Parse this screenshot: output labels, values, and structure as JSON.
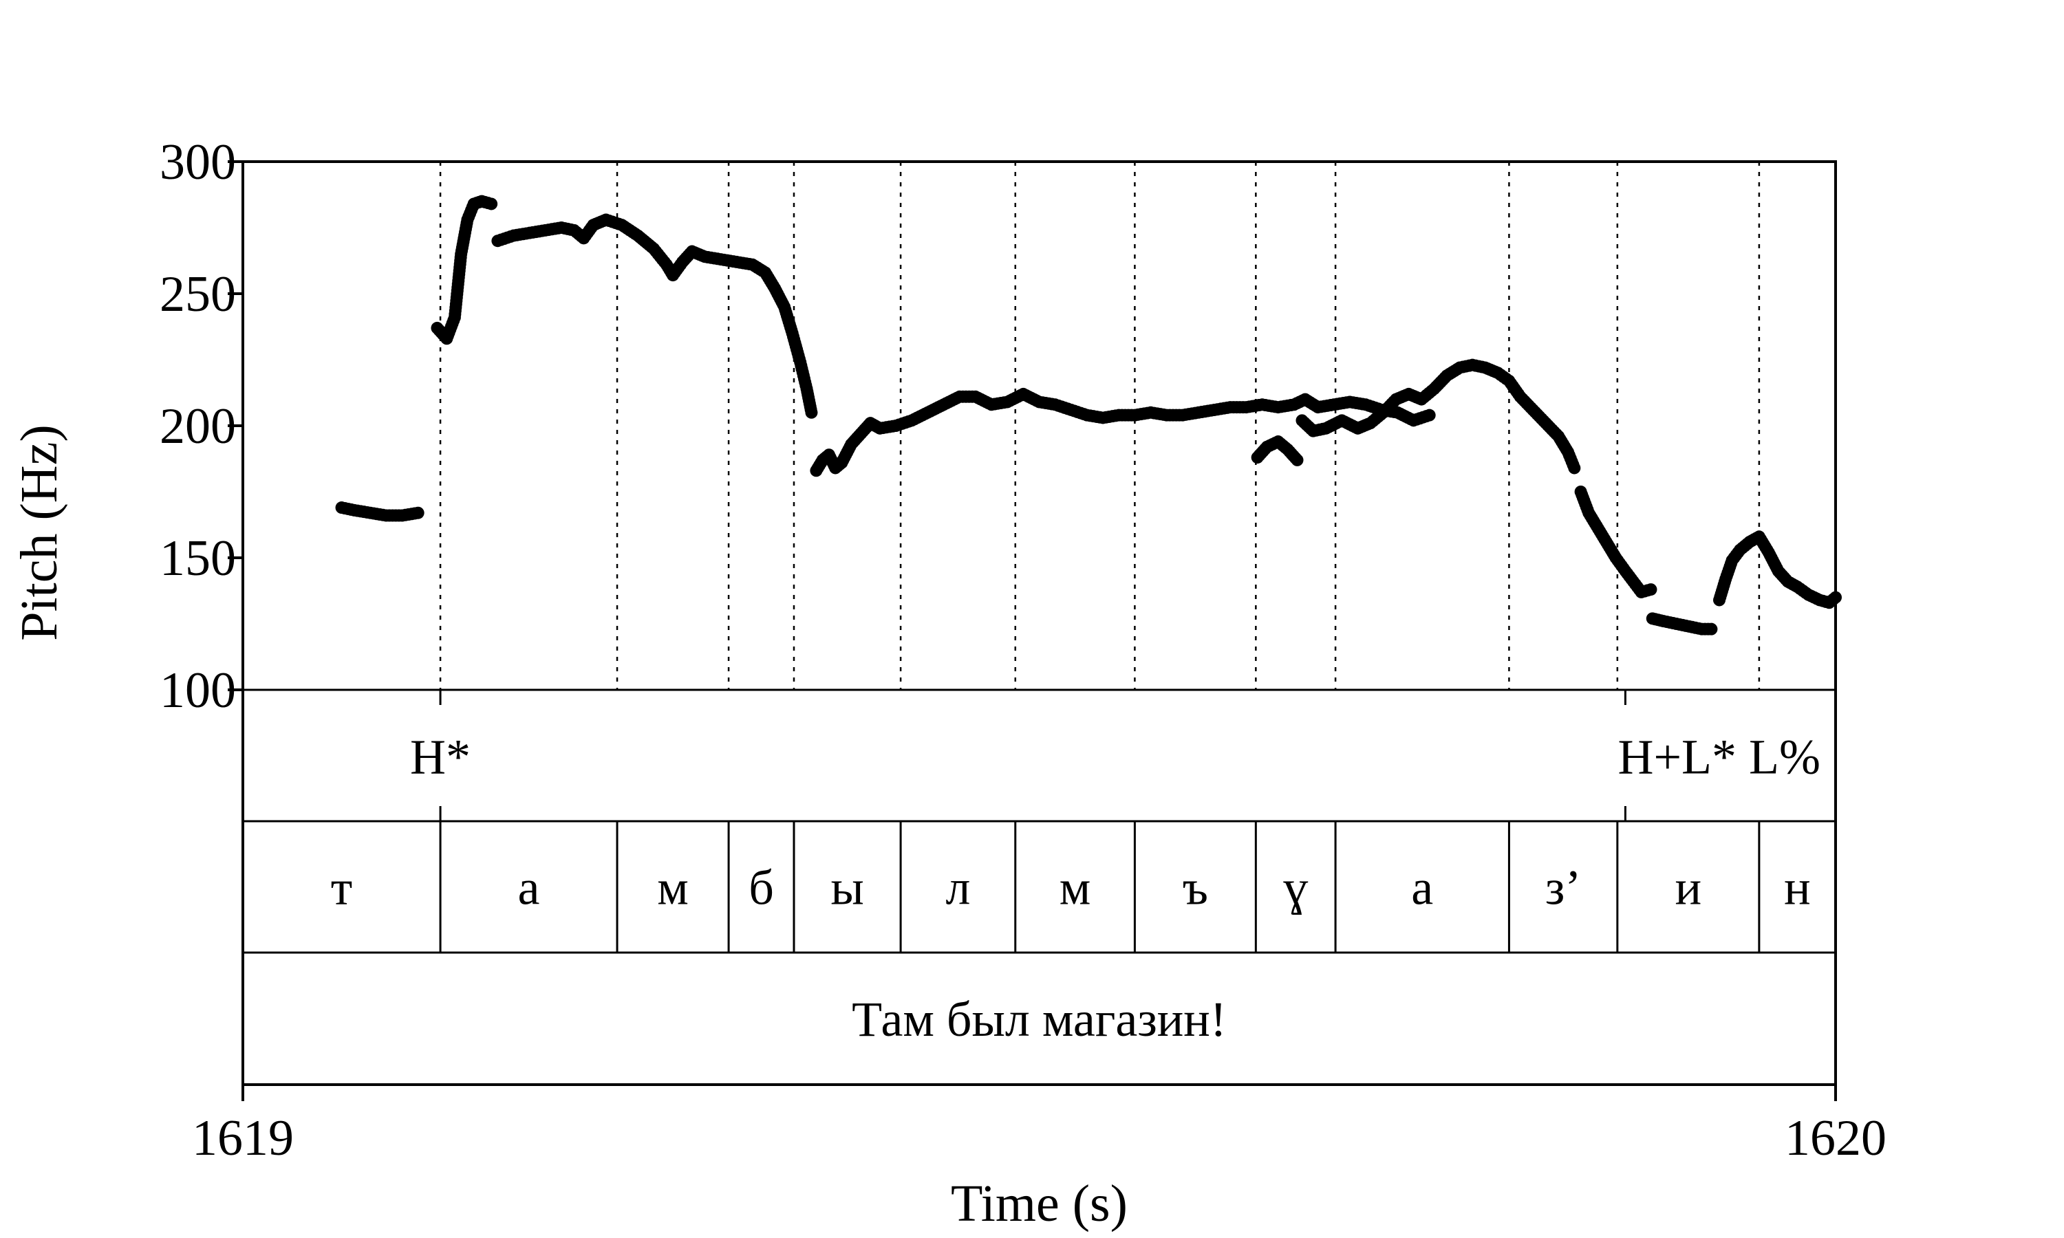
{
  "chart_data": {
    "type": "scatter",
    "title": "",
    "xlabel": "Time (s)",
    "ylabel": "Pitch (Hz)",
    "xlim": [
      1619,
      1620
    ],
    "ylim": [
      100,
      300
    ],
    "x_ticks": [
      {
        "value": 1619,
        "label": "1619"
      },
      {
        "value": 1620,
        "label": "1620"
      }
    ],
    "y_ticks": [
      {
        "value": 100,
        "label": "100"
      },
      {
        "value": 150,
        "label": "150"
      },
      {
        "value": 200,
        "label": "200"
      },
      {
        "value": 250,
        "label": "250"
      },
      {
        "value": 300,
        "label": "300"
      }
    ],
    "pitch_segments": [
      [
        [
          1619.062,
          169
        ],
        [
          1619.07,
          168
        ],
        [
          1619.08,
          167
        ],
        [
          1619.09,
          166
        ],
        [
          1619.1,
          166
        ],
        [
          1619.11,
          167
        ]
      ],
      [
        [
          1619.122,
          237
        ],
        [
          1619.128,
          233
        ],
        [
          1619.133,
          241
        ],
        [
          1619.137,
          265
        ],
        [
          1619.141,
          278
        ],
        [
          1619.145,
          284
        ],
        [
          1619.15,
          285
        ],
        [
          1619.156,
          284
        ]
      ],
      [
        [
          1619.16,
          270
        ],
        [
          1619.17,
          272
        ],
        [
          1619.18,
          273
        ],
        [
          1619.19,
          274
        ],
        [
          1619.2,
          275
        ],
        [
          1619.208,
          274
        ],
        [
          1619.214,
          271
        ],
        [
          1619.22,
          276
        ],
        [
          1619.228,
          278
        ],
        [
          1619.238,
          276
        ],
        [
          1619.248,
          272
        ],
        [
          1619.258,
          267
        ],
        [
          1619.266,
          261
        ],
        [
          1619.27,
          257
        ],
        [
          1619.276,
          262
        ],
        [
          1619.282,
          266
        ],
        [
          1619.29,
          264
        ],
        [
          1619.3,
          263
        ],
        [
          1619.31,
          262
        ],
        [
          1619.32,
          261
        ],
        [
          1619.328,
          258
        ],
        [
          1619.334,
          252
        ],
        [
          1619.34,
          245
        ],
        [
          1619.345,
          235
        ],
        [
          1619.35,
          224
        ],
        [
          1619.354,
          214
        ],
        [
          1619.357,
          205
        ]
      ],
      [
        [
          1619.36,
          183
        ],
        [
          1619.364,
          187
        ],
        [
          1619.368,
          189
        ],
        [
          1619.372,
          184
        ],
        [
          1619.376,
          186
        ],
        [
          1619.382,
          193
        ],
        [
          1619.388,
          197
        ],
        [
          1619.394,
          201
        ],
        [
          1619.4,
          199
        ],
        [
          1619.41,
          200
        ],
        [
          1619.42,
          202
        ],
        [
          1619.43,
          205
        ],
        [
          1619.44,
          208
        ],
        [
          1619.45,
          211
        ],
        [
          1619.46,
          211
        ],
        [
          1619.47,
          208
        ],
        [
          1619.48,
          209
        ],
        [
          1619.49,
          212
        ],
        [
          1619.5,
          209
        ],
        [
          1619.51,
          208
        ],
        [
          1619.52,
          206
        ],
        [
          1619.53,
          204
        ],
        [
          1619.54,
          203
        ],
        [
          1619.55,
          204
        ],
        [
          1619.56,
          204
        ],
        [
          1619.57,
          205
        ],
        [
          1619.58,
          204
        ],
        [
          1619.59,
          204
        ],
        [
          1619.6,
          205
        ],
        [
          1619.61,
          206
        ],
        [
          1619.62,
          207
        ],
        [
          1619.63,
          207
        ],
        [
          1619.64,
          208
        ],
        [
          1619.65,
          207
        ],
        [
          1619.66,
          208
        ],
        [
          1619.667,
          210
        ],
        [
          1619.675,
          207
        ],
        [
          1619.685,
          208
        ],
        [
          1619.695,
          209
        ],
        [
          1619.705,
          208
        ],
        [
          1619.715,
          206
        ],
        [
          1619.725,
          205
        ],
        [
          1619.735,
          202
        ],
        [
          1619.745,
          204
        ]
      ],
      [
        [
          1619.637,
          188
        ],
        [
          1619.643,
          192
        ],
        [
          1619.65,
          194
        ],
        [
          1619.656,
          191
        ],
        [
          1619.662,
          187
        ]
      ],
      [
        [
          1619.665,
          202
        ],
        [
          1619.672,
          198
        ],
        [
          1619.68,
          199
        ],
        [
          1619.69,
          202
        ],
        [
          1619.7,
          199
        ],
        [
          1619.708,
          201
        ],
        [
          1619.716,
          205
        ],
        [
          1619.724,
          210
        ],
        [
          1619.732,
          212
        ],
        [
          1619.74,
          210
        ],
        [
          1619.748,
          214
        ],
        [
          1619.756,
          219
        ],
        [
          1619.764,
          222
        ],
        [
          1619.772,
          223
        ],
        [
          1619.78,
          222
        ],
        [
          1619.788,
          220
        ],
        [
          1619.795,
          217
        ],
        [
          1619.802,
          211
        ],
        [
          1619.81,
          206
        ],
        [
          1619.818,
          201
        ],
        [
          1619.826,
          196
        ],
        [
          1619.832,
          190
        ],
        [
          1619.836,
          184
        ]
      ],
      [
        [
          1619.84,
          175
        ],
        [
          1619.845,
          167
        ],
        [
          1619.85,
          162
        ],
        [
          1619.856,
          156
        ],
        [
          1619.862,
          150
        ],
        [
          1619.868,
          145
        ],
        [
          1619.873,
          141
        ],
        [
          1619.878,
          137
        ],
        [
          1619.884,
          138
        ]
      ],
      [
        [
          1619.885,
          127
        ],
        [
          1619.892,
          126
        ],
        [
          1619.9,
          125
        ],
        [
          1619.908,
          124
        ],
        [
          1619.916,
          123
        ],
        [
          1619.922,
          123
        ]
      ],
      [
        [
          1619.927,
          134
        ],
        [
          1619.931,
          142
        ],
        [
          1619.935,
          149
        ],
        [
          1619.94,
          153
        ],
        [
          1619.946,
          156
        ],
        [
          1619.952,
          158
        ],
        [
          1619.958,
          152
        ],
        [
          1619.964,
          145
        ],
        [
          1619.97,
          141
        ],
        [
          1619.976,
          139
        ],
        [
          1619.983,
          136
        ],
        [
          1619.99,
          134
        ],
        [
          1619.996,
          133
        ],
        [
          1620.0,
          135
        ]
      ]
    ],
    "tiers": {
      "tones": [
        {
          "label": "H*",
          "t": 1619.124
        },
        {
          "label": "H+L* L%",
          "t": 1619.868
        }
      ],
      "segments": [
        {
          "label": "т",
          "start": 1619.0,
          "end": 1619.124
        },
        {
          "label": "а",
          "start": 1619.124,
          "end": 1619.235
        },
        {
          "label": "м",
          "start": 1619.235,
          "end": 1619.305
        },
        {
          "label": "б",
          "start": 1619.305,
          "end": 1619.346
        },
        {
          "label": "ы",
          "start": 1619.346,
          "end": 1619.413
        },
        {
          "label": "л",
          "start": 1619.413,
          "end": 1619.485
        },
        {
          "label": "м",
          "start": 1619.485,
          "end": 1619.56
        },
        {
          "label": "ъ",
          "start": 1619.56,
          "end": 1619.636
        },
        {
          "label": "ɣ",
          "start": 1619.636,
          "end": 1619.686
        },
        {
          "label": "а",
          "start": 1619.686,
          "end": 1619.795
        },
        {
          "label": "з’",
          "start": 1619.795,
          "end": 1619.863
        },
        {
          "label": "и",
          "start": 1619.863,
          "end": 1619.952
        },
        {
          "label": "н",
          "start": 1619.952,
          "end": 1620.0
        }
      ],
      "sentence": "Там был магазин!"
    },
    "grid": false,
    "legend": "none"
  }
}
